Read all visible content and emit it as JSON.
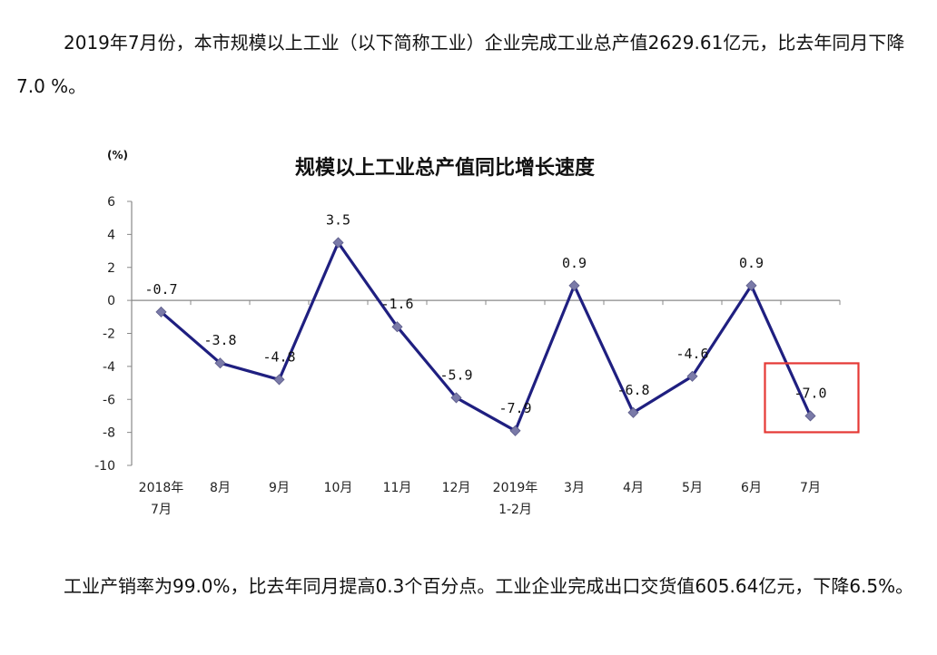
{
  "paragraph1": "2019年7月份，本市规模以上工业（以下简称工业）企业完成工业总产值2629.61亿元，比去年同月下降7.0 %。",
  "paragraph2": "工业产销率为99.0%，比去年同月提高0.3个百分点。工业企业完成出口交货值605.64亿元，下降6.5%。",
  "colors": {
    "line": "#1f1f80",
    "marker": "#7a7aa8",
    "highlight_box": "#e53935",
    "axis": "#888888"
  },
  "chart_data": {
    "type": "line",
    "title": "规模以上工业总产值同比增长速度",
    "ylabel": "(%)",
    "xlabel": "",
    "ylim": [
      -10,
      6
    ],
    "yticks": [
      6,
      4,
      2,
      0,
      -2,
      -4,
      -6,
      -8,
      -10
    ],
    "categories": [
      [
        "2018年",
        "7月"
      ],
      [
        "8月"
      ],
      [
        "9月"
      ],
      [
        "10月"
      ],
      [
        "11月"
      ],
      [
        "12月"
      ],
      [
        "2019年",
        "1-2月"
      ],
      [
        "3月"
      ],
      [
        "4月"
      ],
      [
        "5月"
      ],
      [
        "6月"
      ],
      [
        "7月"
      ]
    ],
    "series": [
      {
        "values": [
          -0.7,
          -3.8,
          -4.8,
          3.5,
          -1.6,
          -5.9,
          -7.9,
          0.9,
          -6.8,
          -4.6,
          0.9,
          -7.0
        ]
      }
    ],
    "data_labels": [
      "-0.7",
      "-3.8",
      "-4.8",
      "3.5",
      "-1.6",
      "-5.9",
      "-7.9",
      "0.9",
      "-6.8",
      "-4.6",
      "0.9",
      "-7.0"
    ],
    "highlight_index": 11,
    "grid": false,
    "legend": "none"
  }
}
